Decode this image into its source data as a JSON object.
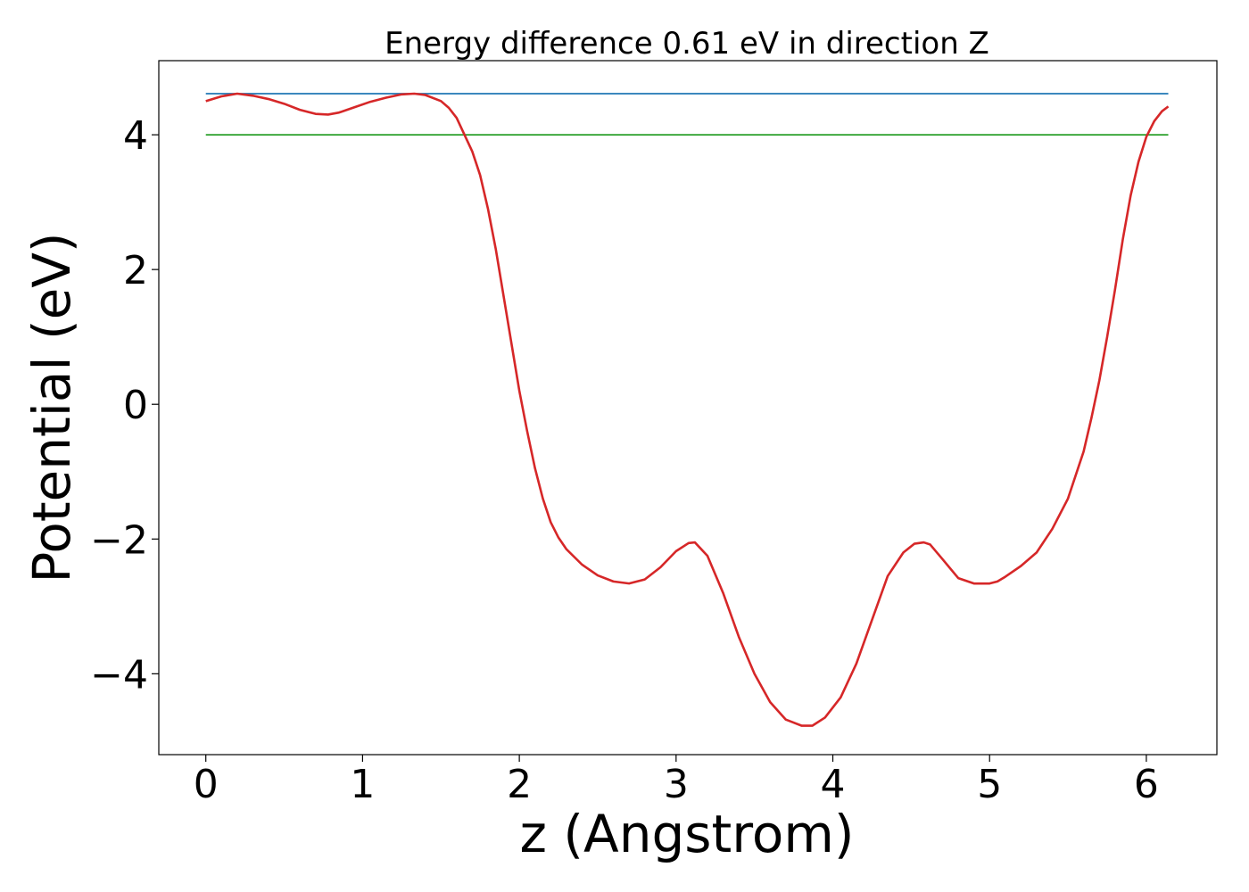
{
  "chart_data": {
    "type": "line",
    "title": "Energy difference 0.61 eV in direction Z",
    "xlabel": "z (Angstrom)",
    "ylabel": "Potential (eV)",
    "xlim": [
      -0.3,
      6.45
    ],
    "ylim": [
      -5.2,
      5.1
    ],
    "grid": false,
    "xticks": [
      0,
      1,
      2,
      3,
      4,
      5,
      6
    ],
    "yticks": [
      -4,
      -2,
      0,
      2,
      4
    ],
    "ytick_labels": [
      "−4",
      "−2",
      "0",
      "2",
      "4"
    ],
    "xtick_labels": [
      "0",
      "1",
      "2",
      "3",
      "4",
      "5",
      "6"
    ],
    "series": [
      {
        "color": "#d62728",
        "kind": "curve",
        "x": [
          0.0,
          0.1,
          0.2,
          0.3,
          0.4,
          0.5,
          0.6,
          0.7,
          0.78,
          0.85,
          0.95,
          1.05,
          1.15,
          1.25,
          1.33,
          1.4,
          1.5,
          1.55,
          1.6,
          1.65,
          1.7,
          1.75,
          1.8,
          1.85,
          1.9,
          1.95,
          2.0,
          2.05,
          2.1,
          2.15,
          2.2,
          2.25,
          2.3,
          2.4,
          2.5,
          2.6,
          2.7,
          2.8,
          2.9,
          3.0,
          3.08,
          3.12,
          3.2,
          3.3,
          3.4,
          3.5,
          3.6,
          3.7,
          3.8,
          3.87,
          3.95,
          4.05,
          4.15,
          4.25,
          4.35,
          4.45,
          4.52,
          4.58,
          4.62,
          4.7,
          4.8,
          4.9,
          5.0,
          5.05,
          5.1,
          5.2,
          5.3,
          5.4,
          5.5,
          5.6,
          5.65,
          5.7,
          5.75,
          5.8,
          5.85,
          5.9,
          5.95,
          6.0,
          6.05,
          6.1,
          6.14
        ],
        "y": [
          4.5,
          4.57,
          4.61,
          4.58,
          4.53,
          4.46,
          4.37,
          4.31,
          4.3,
          4.33,
          4.41,
          4.49,
          4.55,
          4.6,
          4.61,
          4.59,
          4.5,
          4.4,
          4.25,
          4.0,
          3.75,
          3.4,
          2.9,
          2.3,
          1.6,
          0.9,
          0.2,
          -0.4,
          -0.95,
          -1.4,
          -1.75,
          -1.98,
          -2.15,
          -2.38,
          -2.54,
          -2.63,
          -2.66,
          -2.6,
          -2.42,
          -2.18,
          -2.06,
          -2.05,
          -2.25,
          -2.8,
          -3.45,
          -4.0,
          -4.42,
          -4.68,
          -4.77,
          -4.77,
          -4.65,
          -4.35,
          -3.85,
          -3.2,
          -2.55,
          -2.2,
          -2.07,
          -2.05,
          -2.08,
          -2.3,
          -2.58,
          -2.66,
          -2.66,
          -2.63,
          -2.56,
          -2.4,
          -2.2,
          -1.85,
          -1.4,
          -0.7,
          -0.2,
          0.35,
          1.0,
          1.7,
          2.45,
          3.1,
          3.6,
          3.97,
          4.2,
          4.35,
          4.42
        ]
      },
      {
        "color": "#1f77b4",
        "kind": "hline",
        "x": [
          0.0,
          6.14
        ],
        "y": [
          4.61,
          4.61
        ]
      },
      {
        "color": "#2ca02c",
        "kind": "hline",
        "x": [
          0.0,
          6.14
        ],
        "y": [
          4.0,
          4.0
        ]
      }
    ]
  }
}
